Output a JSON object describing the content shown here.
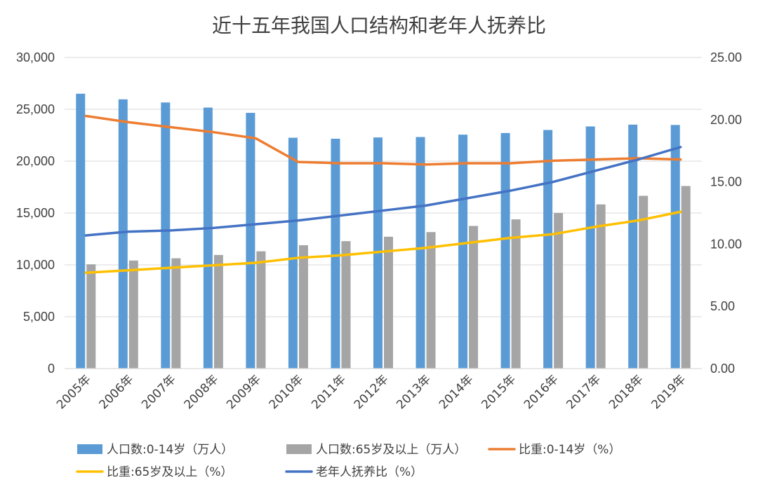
{
  "chart_data": {
    "type": "bar+line",
    "title": "近十五年我国人口结构和老年人抚养比",
    "categories": [
      "2005年",
      "2006年",
      "2007年",
      "2008年",
      "2009年",
      "2010年",
      "2011年",
      "2012年",
      "2013年",
      "2014年",
      "2015年",
      "2016年",
      "2017年",
      "2018年",
      "2019年"
    ],
    "left_axis": {
      "range": [
        0,
        30000
      ],
      "ticks": [
        "0",
        "5,000",
        "10,000",
        "15,000",
        "20,000",
        "25,000",
        "30,000"
      ],
      "tick_values": [
        0,
        5000,
        10000,
        15000,
        20000,
        25000,
        30000
      ]
    },
    "right_axis": {
      "range": [
        0,
        25
      ],
      "ticks": [
        "0.00",
        "5.00",
        "10.00",
        "15.00",
        "20.00",
        "25.00"
      ],
      "tick_values": [
        0,
        5,
        10,
        15,
        20,
        25
      ]
    },
    "grid": true,
    "legend_position": "bottom",
    "bar_series": [
      {
        "name": "人口数:0-14岁（万人）",
        "color": "#5B9BD5",
        "values": [
          26504,
          25961,
          25660,
          25166,
          24659,
          22259,
          22164,
          22287,
          22329,
          22558,
          22715,
          23008,
          23348,
          23523,
          23492
        ]
      },
      {
        "name": "人口数:65岁及以上（万人）",
        "color": "#A5A5A5",
        "values": [
          10055,
          10419,
          10636,
          10956,
          11307,
          11894,
          12288,
          12714,
          13161,
          13755,
          14386,
          15003,
          15831,
          16658,
          17603
        ]
      }
    ],
    "line_series": [
      {
        "name": "比重:0-14岁（%）",
        "color": "#ED7D31",
        "values": [
          20.3,
          19.8,
          19.4,
          19.0,
          18.5,
          16.6,
          16.5,
          16.5,
          16.4,
          16.5,
          16.5,
          16.7,
          16.8,
          16.9,
          16.8
        ]
      },
      {
        "name": "比重:65岁及以上（%）",
        "color": "#FFC000",
        "values": [
          7.7,
          7.9,
          8.1,
          8.3,
          8.5,
          8.9,
          9.1,
          9.4,
          9.7,
          10.1,
          10.5,
          10.8,
          11.4,
          11.9,
          12.6
        ]
      },
      {
        "name": "老年人抚养比（%）",
        "color": "#4472C4",
        "values": [
          10.7,
          11.0,
          11.1,
          11.3,
          11.6,
          11.9,
          12.3,
          12.7,
          13.1,
          13.7,
          14.3,
          15.0,
          15.9,
          16.8,
          17.8
        ]
      }
    ]
  }
}
